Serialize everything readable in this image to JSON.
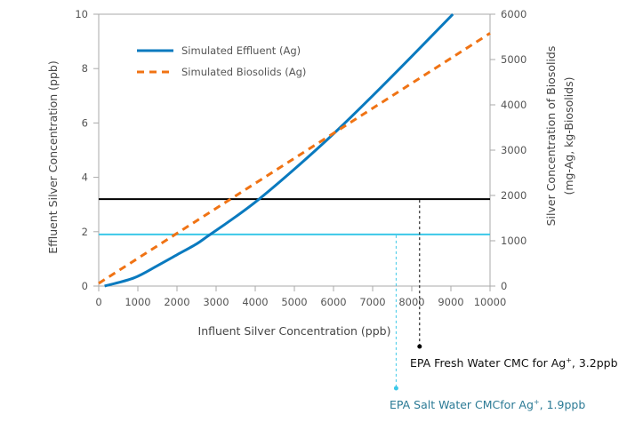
{
  "chart_data": {
    "type": "line",
    "title": "",
    "xlabel": "Influent Silver Concentration (ppb)",
    "ylabel": "Effluent Silver Concentration (ppb)",
    "y2label_line1": "Silver Concentration of Biosolids",
    "y2label_line2": "(mg-Ag, kg-Biosolids)",
    "xlim": [
      0,
      10000
    ],
    "ylim": [
      0,
      10
    ],
    "y2lim": [
      0,
      6000
    ],
    "xticks": [
      "0",
      "1000",
      "2000",
      "3000",
      "4000",
      "5000",
      "6000",
      "7000",
      "8000",
      "9000",
      "10000"
    ],
    "yticks": [
      "0",
      "2",
      "4",
      "6",
      "8",
      "10"
    ],
    "y2ticks": [
      "0",
      "1000",
      "2000",
      "3000",
      "4000",
      "5000",
      "6000"
    ],
    "grid": false,
    "legend_position": "top-left",
    "series": [
      {
        "name": "Simulated Effluent (Ag)",
        "axis": "left",
        "color": "#0a7abf",
        "style": "solid",
        "x": [
          150,
          900,
          1500,
          2000,
          2500,
          2800,
          3500,
          4100,
          5000,
          6000,
          7000,
          8000,
          9050
        ],
        "y": [
          0,
          0.3,
          0.75,
          1.15,
          1.55,
          1.85,
          2.55,
          3.2,
          4.3,
          5.6,
          7.0,
          8.45,
          10.0
        ]
      },
      {
        "name": "Simulated Biosolids (Ag)",
        "axis": "right",
        "color": "#f07314",
        "style": "dashed",
        "x": [
          0,
          10000
        ],
        "y": [
          60,
          5580
        ]
      }
    ],
    "reference_lines": [
      {
        "name": "EPA Fresh Water CMC",
        "y": 3.2,
        "color": "#000000",
        "marker_x": 8200,
        "label": "EPA Fresh Water CMC for Ag",
        "sup": "+",
        "value_label": ", 3.2ppb"
      },
      {
        "name": "EPA Salt Water CMC",
        "y": 1.9,
        "color": "#3cc8e8",
        "marker_x": 7600,
        "label": "EPA Salt Water CMCfor Ag",
        "sup": "+",
        "value_label": ", 1.9ppb"
      }
    ]
  }
}
